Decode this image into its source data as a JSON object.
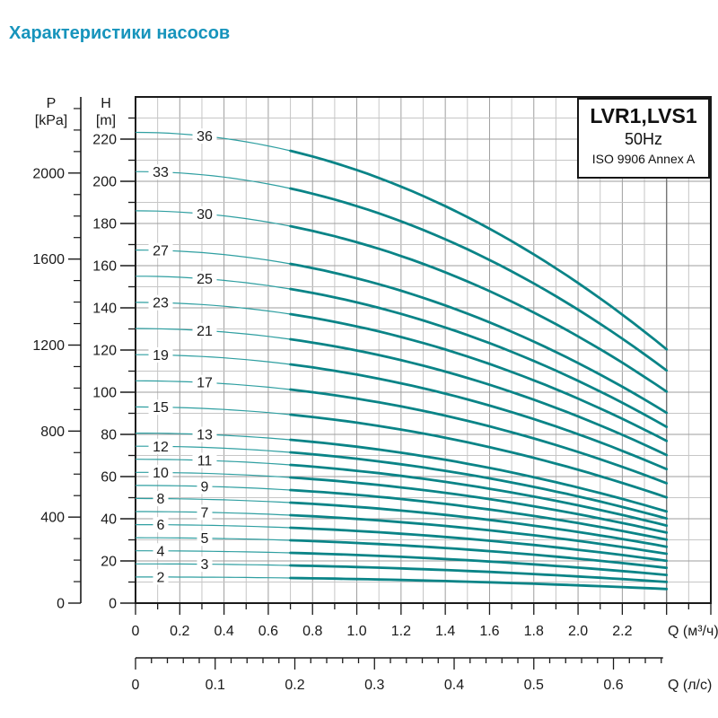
{
  "title": "Характеристики насосов",
  "chart_data": {
    "type": "line",
    "title": "Характеристики насосов",
    "legend_box": [
      "LVR1,LVS1",
      "50Hz",
      "ISO 9906 Annex A"
    ],
    "axes": {
      "x_m3h": {
        "label": "Q (м³/ч)",
        "min": 0,
        "max": 2.6,
        "major_tick_labels": [
          "0",
          "0.2",
          "0.4",
          "0.6",
          "0.8",
          "1.0",
          "1.2",
          "1.4",
          "1.6",
          "1.8",
          "2.0",
          "2.2"
        ],
        "major_step": 0.2,
        "minor_step": 0.1
      },
      "x_ls": {
        "label": "Q (л/с)",
        "min": 0,
        "max": 0.66,
        "major_tick_labels": [
          "0",
          "0.1",
          "0.2",
          "0.3",
          "0.4",
          "0.5",
          "0.6"
        ],
        "major_step": 0.1,
        "minor_step": 0.02
      },
      "y_h": {
        "label_line1": "H",
        "label_line2": "[m]",
        "min": 0,
        "max": 240,
        "major_tick_labels": [
          "0",
          "20",
          "40",
          "60",
          "80",
          "100",
          "120",
          "140",
          "160",
          "180",
          "200",
          "220"
        ],
        "major_step": 20,
        "minor_step": 10
      },
      "y_p": {
        "label_line1": "P",
        "label_line2": "[kPa]",
        "min": 0,
        "max": 2354,
        "major_tick_labels": [
          "0",
          "400",
          "800",
          "1200",
          "1600",
          "2000"
        ],
        "major_step": 400,
        "minor_step": 100
      }
    },
    "curves": {
      "stage_labels": [
        2,
        3,
        4,
        5,
        6,
        7,
        8,
        9,
        10,
        11,
        12,
        13,
        15,
        17,
        19,
        21,
        23,
        25,
        27,
        30,
        33,
        36
      ],
      "head_per_stage_m": 6.2,
      "q_falloff_coeff": 0.08,
      "q_min": 0,
      "q_end": 2.4,
      "thick_from_q": 0.7,
      "sample_q": [
        0,
        0.5,
        1.0,
        1.5,
        2.0,
        2.4
      ],
      "series": [
        {
          "stages": 2,
          "H_m": [
            12.4,
            12.2,
            11.4,
            10.2,
            8.4,
            6.7
          ]
        },
        {
          "stages": 3,
          "H_m": [
            18.6,
            18.2,
            17.1,
            15.3,
            12.6,
            10.0
          ]
        },
        {
          "stages": 4,
          "H_m": [
            24.8,
            24.3,
            22.8,
            20.3,
            16.9,
            13.4
          ]
        },
        {
          "stages": 5,
          "H_m": [
            31.0,
            30.4,
            28.5,
            25.4,
            21.1,
            16.7
          ]
        },
        {
          "stages": 6,
          "H_m": [
            37.2,
            36.5,
            34.2,
            30.5,
            25.3,
            20.1
          ]
        },
        {
          "stages": 7,
          "H_m": [
            43.4,
            42.5,
            39.9,
            35.6,
            29.5,
            23.4
          ]
        },
        {
          "stages": 8,
          "H_m": [
            49.6,
            48.6,
            45.6,
            40.7,
            33.7,
            26.7
          ]
        },
        {
          "stages": 9,
          "H_m": [
            55.8,
            54.7,
            51.3,
            45.8,
            37.9,
            30.1
          ]
        },
        {
          "stages": 10,
          "H_m": [
            62.0,
            60.8,
            57.0,
            50.8,
            42.2,
            33.4
          ]
        },
        {
          "stages": 11,
          "H_m": [
            68.2,
            66.8,
            62.7,
            55.9,
            46.4,
            36.8
          ]
        },
        {
          "stages": 12,
          "H_m": [
            74.4,
            72.9,
            68.4,
            61.0,
            50.6,
            40.1
          ]
        },
        {
          "stages": 13,
          "H_m": [
            80.6,
            79.0,
            74.2,
            66.1,
            54.8,
            43.5
          ]
        },
        {
          "stages": 15,
          "H_m": [
            93.0,
            91.1,
            85.6,
            76.3,
            63.2,
            50.1
          ]
        },
        {
          "stages": 17,
          "H_m": [
            105.4,
            103.3,
            97.0,
            86.4,
            71.7,
            56.8
          ]
        },
        {
          "stages": 19,
          "H_m": [
            117.8,
            115.4,
            108.4,
            96.6,
            80.1,
            63.5
          ]
        },
        {
          "stages": 21,
          "H_m": [
            130.2,
            127.6,
            119.8,
            106.8,
            88.5,
            70.2
          ]
        },
        {
          "stages": 23,
          "H_m": [
            142.6,
            139.7,
            131.2,
            116.9,
            97.0,
            76.9
          ]
        },
        {
          "stages": 25,
          "H_m": [
            155.0,
            151.9,
            142.6,
            127.1,
            105.4,
            83.6
          ]
        },
        {
          "stages": 27,
          "H_m": [
            167.4,
            164.1,
            154.0,
            137.3,
            113.8,
            90.3
          ]
        },
        {
          "stages": 30,
          "H_m": [
            186.0,
            182.3,
            171.1,
            152.5,
            126.5,
            100.3
          ]
        },
        {
          "stages": 33,
          "H_m": [
            204.6,
            200.5,
            188.2,
            167.7,
            139.1,
            110.3
          ]
        },
        {
          "stages": 36,
          "H_m": [
            223.2,
            218.7,
            205.3,
            183.0,
            151.8,
            120.3
          ]
        }
      ]
    },
    "style": {
      "title_color": "#1794bc",
      "curve_color": "#0a8487",
      "curve_thin_color": "#2f9fa1",
      "grid_minor_color": "#c6c6c6",
      "grid_major_color": "#9e9e9e",
      "axis_color": "#1a1a1a",
      "text_color": "#1a1a1a"
    }
  }
}
